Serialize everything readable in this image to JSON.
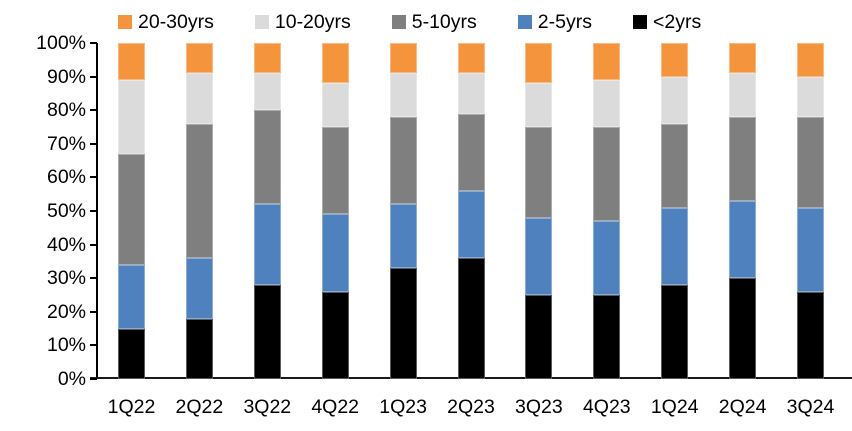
{
  "chart_data": {
    "type": "bar",
    "stacked": true,
    "orientation": "vertical",
    "title": "",
    "xlabel": "",
    "ylabel": "",
    "categories": [
      "1Q22",
      "2Q22",
      "3Q22",
      "4Q22",
      "1Q23",
      "2Q23",
      "3Q23",
      "4Q23",
      "1Q24",
      "2Q24",
      "3Q24"
    ],
    "series": [
      {
        "name": "<2yrs",
        "color": "#000000",
        "values": [
          15,
          18,
          28,
          26,
          33,
          36,
          25,
          25,
          28,
          30,
          26
        ]
      },
      {
        "name": "2-5yrs",
        "color": "#4E81BD",
        "values": [
          19,
          18,
          24,
          23,
          19,
          20,
          23,
          22,
          23,
          23,
          25
        ]
      },
      {
        "name": "5-10yrs",
        "color": "#7F7F7F",
        "values": [
          33,
          40,
          28,
          26,
          26,
          23,
          27,
          28,
          25,
          25,
          27
        ]
      },
      {
        "name": "10-20yrs",
        "color": "#DBDBDB",
        "values": [
          22,
          15,
          11,
          13,
          13,
          12,
          13,
          14,
          14,
          13,
          12
        ]
      },
      {
        "name": "20-30yrs",
        "color": "#F4953D",
        "values": [
          11,
          9,
          9,
          12,
          9,
          9,
          12,
          11,
          10,
          9,
          10
        ]
      }
    ],
    "legend": {
      "position": "top",
      "order": [
        "20-30yrs",
        "10-20yrs",
        "5-10yrs",
        "2-5yrs",
        "<2yrs"
      ]
    },
    "y_axis": {
      "min": 0,
      "max": 100,
      "step": 10,
      "suffix": "%"
    },
    "ylim": [
      0,
      100
    ],
    "grid": false,
    "units": "percent of total"
  }
}
